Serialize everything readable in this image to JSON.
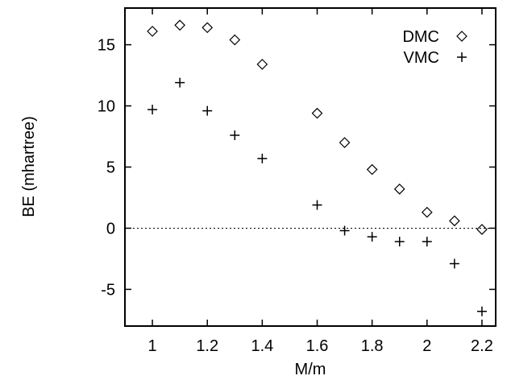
{
  "chart_data": {
    "type": "scatter",
    "title": "",
    "xlabel": "M/m",
    "ylabel": "BE (mhartree)",
    "xlim": [
      0.9,
      2.25
    ],
    "ylim": [
      -8,
      18
    ],
    "xticks": [
      1,
      1.2,
      1.4,
      1.6,
      1.8,
      2,
      2.2
    ],
    "xtick_labels": [
      "1",
      "1.2",
      "1.4",
      "1.6",
      "1.8",
      "2",
      "2.2"
    ],
    "yticks": [
      -5,
      0,
      5,
      10,
      15
    ],
    "ytick_labels": [
      "-5",
      "0",
      "5",
      "10",
      "15"
    ],
    "grid": false,
    "zero_line": true,
    "legend_position": "top-right",
    "series": [
      {
        "name": "DMC",
        "marker": "diamond",
        "x": [
          1.0,
          1.1,
          1.2,
          1.3,
          1.4,
          1.6,
          1.7,
          1.8,
          1.9,
          2.0,
          2.1,
          2.2
        ],
        "y": [
          16.1,
          16.6,
          16.4,
          15.4,
          13.4,
          9.4,
          7.0,
          4.8,
          3.2,
          1.3,
          0.6,
          -0.1
        ]
      },
      {
        "name": "VMC",
        "marker": "plus",
        "x": [
          1.0,
          1.1,
          1.2,
          1.3,
          1.4,
          1.6,
          1.7,
          1.8,
          1.9,
          2.0,
          2.1,
          2.2
        ],
        "y": [
          9.7,
          11.9,
          9.6,
          7.6,
          5.7,
          1.9,
          -0.2,
          -0.7,
          -1.1,
          -1.1,
          -2.9,
          -6.8
        ]
      }
    ]
  }
}
